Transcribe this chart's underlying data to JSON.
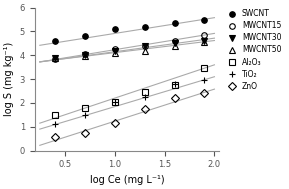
{
  "title": "",
  "xlabel": "log Ce (mg L⁻¹)",
  "ylabel": "log S (mg kg⁻¹)",
  "xlim": [
    0.2,
    2.05
  ],
  "ylim": [
    0.0,
    6.0
  ],
  "xticks": [
    0.5,
    1.0,
    1.5,
    2.0
  ],
  "yticks": [
    0,
    1,
    2,
    3,
    4,
    5,
    6
  ],
  "series": [
    {
      "label": "SWCNT",
      "marker": "o",
      "fillstyle": "full",
      "color": "black",
      "markersize": 4,
      "x": [
        0.4,
        0.7,
        1.0,
        1.3,
        1.6,
        1.9
      ],
      "y": [
        4.62,
        4.8,
        5.1,
        5.2,
        5.37,
        5.5
      ],
      "fit_x": [
        0.25,
        2.0
      ],
      "fit_y": [
        4.42,
        5.58
      ]
    },
    {
      "label": "MWCNT15",
      "marker": "o",
      "fillstyle": "none",
      "color": "black",
      "markersize": 4,
      "x": [
        0.4,
        0.7,
        1.0,
        1.3,
        1.6,
        1.9
      ],
      "y": [
        3.85,
        4.05,
        4.25,
        4.4,
        4.6,
        4.85
      ],
      "fit_x": [
        0.25,
        2.0
      ],
      "fit_y": [
        3.72,
        4.92
      ]
    },
    {
      "label": "MWCNT30",
      "marker": "v",
      "fillstyle": "full",
      "color": "black",
      "markersize": 4,
      "x": [
        0.4,
        0.7,
        1.0,
        1.3,
        1.6,
        1.9
      ],
      "y": [
        3.87,
        4.0,
        4.2,
        4.38,
        4.5,
        4.62
      ],
      "fit_x": [
        0.25,
        2.0
      ],
      "fit_y": [
        3.72,
        4.72
      ]
    },
    {
      "label": "MWCNT50",
      "marker": "^",
      "fillstyle": "none",
      "color": "black",
      "markersize": 4,
      "x": [
        0.4,
        0.7,
        1.0,
        1.3,
        1.6,
        1.9
      ],
      "y": [
        3.88,
        3.98,
        4.1,
        4.2,
        4.4,
        4.55
      ],
      "fit_x": [
        0.25,
        2.0
      ],
      "fit_y": [
        3.73,
        4.62
      ]
    },
    {
      "label": "Al₂O₃",
      "marker": "s",
      "fillstyle": "none",
      "color": "black",
      "markersize": 4,
      "x": [
        0.4,
        0.7,
        1.0,
        1.3,
        1.6,
        1.9
      ],
      "y": [
        1.48,
        1.8,
        2.05,
        2.45,
        2.75,
        3.45
      ],
      "fit_x": [
        0.25,
        2.0
      ],
      "fit_y": [
        1.15,
        3.6
      ]
    },
    {
      "label": "TiO₂",
      "marker": "+",
      "fillstyle": "full",
      "color": "black",
      "markersize": 5,
      "x": [
        0.4,
        0.7,
        1.0,
        1.3,
        1.6,
        1.9
      ],
      "y": [
        1.12,
        1.48,
        2.05,
        2.25,
        2.78,
        2.95
      ],
      "fit_x": [
        0.25,
        2.0
      ],
      "fit_y": [
        0.9,
        3.1
      ]
    },
    {
      "label": "ZnO",
      "marker": "D",
      "fillstyle": "none",
      "color": "black",
      "markersize": 4,
      "x": [
        0.4,
        0.7,
        1.0,
        1.3,
        1.6,
        1.9
      ],
      "y": [
        0.55,
        0.75,
        1.15,
        1.75,
        2.2,
        2.42
      ],
      "fit_x": [
        0.25,
        2.0
      ],
      "fit_y": [
        0.22,
        2.58
      ]
    }
  ],
  "line_color": "#aaaaaa",
  "line_width": 0.8,
  "font_size": 7,
  "tick_size": 6
}
